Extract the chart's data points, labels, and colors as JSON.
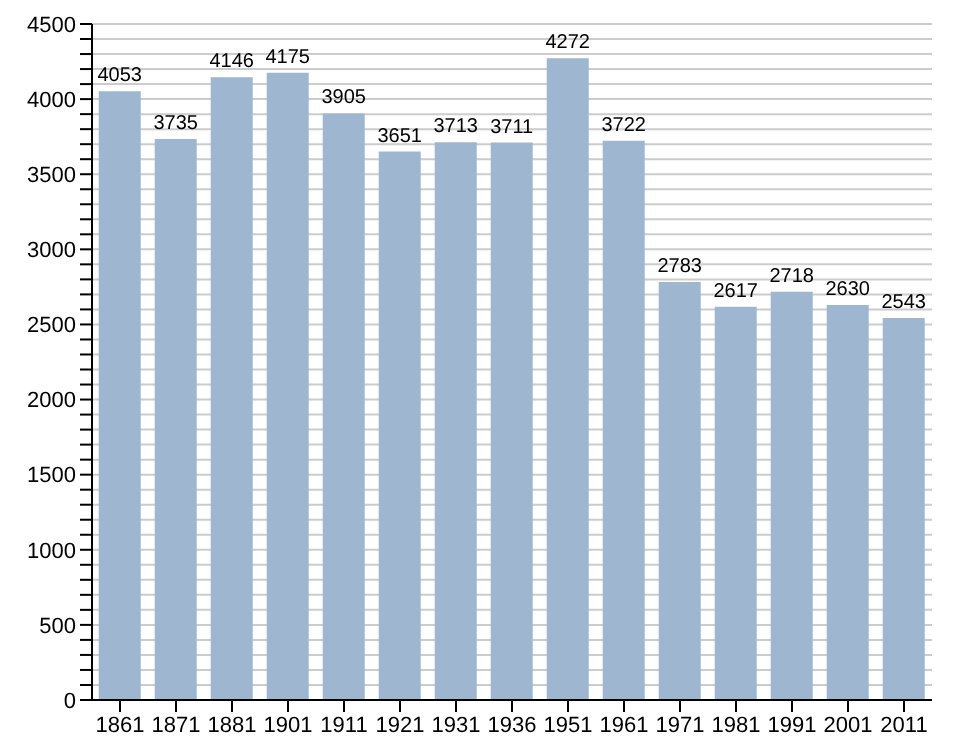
{
  "chart_data": {
    "type": "bar",
    "categories": [
      "1861",
      "1871",
      "1881",
      "1901",
      "1911",
      "1921",
      "1931",
      "1936",
      "1951",
      "1961",
      "1971",
      "1981",
      "1991",
      "2001",
      "2011"
    ],
    "values": [
      4053,
      3735,
      4146,
      4175,
      3905,
      3651,
      3713,
      3711,
      4272,
      3722,
      2783,
      2617,
      2718,
      2630,
      2543
    ],
    "color": "#9fb6d0",
    "ylim": [
      0,
      4500
    ],
    "yticks": [
      0,
      {
        "value": 100,
        "label": null
      },
      {
        "value": 200,
        "label": null
      },
      {
        "value": 300,
        "label": null
      },
      {
        "value": 400,
        "label": null
      },
      500,
      {
        "value": 600,
        "label": null
      },
      {
        "value": 700,
        "label": null
      },
      {
        "value": 800,
        "label": null
      },
      {
        "value": 900,
        "label": null
      },
      1000,
      {
        "value": 1100,
        "label": null
      },
      {
        "value": 1200,
        "label": null
      },
      {
        "value": 1300,
        "label": null
      },
      {
        "value": 1400,
        "label": null
      },
      1500,
      {
        "value": 1600,
        "label": null
      },
      {
        "value": 1700,
        "label": null
      },
      {
        "value": 1800,
        "label": null
      },
      {
        "value": 1900,
        "label": null
      },
      2000,
      {
        "value": 2100,
        "label": null
      },
      {
        "value": 2200,
        "label": null
      },
      {
        "value": 2300,
        "label": null
      },
      {
        "value": 2400,
        "label": null
      },
      2500,
      {
        "value": 2600,
        "label": null
      },
      {
        "value": 2700,
        "label": null
      },
      {
        "value": 2800,
        "label": null
      },
      {
        "value": 2900,
        "label": null
      },
      3000,
      {
        "value": 3100,
        "label": null
      },
      {
        "value": 3200,
        "label": null
      },
      {
        "value": 3300,
        "label": null
      },
      {
        "value": 3400,
        "label": null
      },
      3500,
      {
        "value": 3600,
        "label": null
      },
      {
        "value": 3700,
        "label": null
      },
      {
        "value": 3800,
        "label": null
      },
      {
        "value": 3900,
        "label": null
      },
      4000,
      {
        "value": 4100,
        "label": null
      },
      {
        "value": 4200,
        "label": null
      },
      {
        "value": 4300,
        "label": null
      },
      {
        "value": 4400,
        "label": null
      },
      4500
    ],
    "grid": "y",
    "data_labels": true
  }
}
